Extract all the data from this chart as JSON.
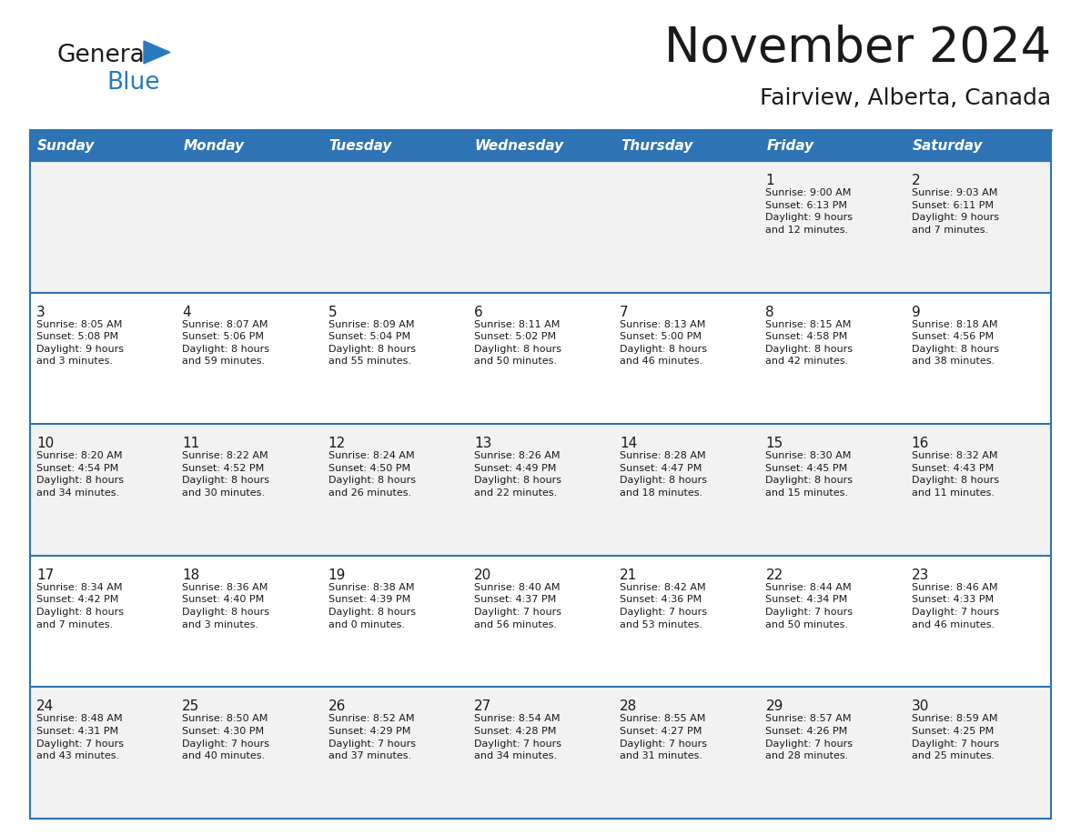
{
  "title": "November 2024",
  "subtitle": "Fairview, Alberta, Canada",
  "header_bg": "#2E74B5",
  "header_text_color": "#FFFFFF",
  "row_bg_light": "#F2F2F2",
  "row_bg_white": "#FFFFFF",
  "day_names": [
    "Sunday",
    "Monday",
    "Tuesday",
    "Wednesday",
    "Thursday",
    "Friday",
    "Saturday"
  ],
  "weeks": [
    [
      {
        "day": "",
        "info": ""
      },
      {
        "day": "",
        "info": ""
      },
      {
        "day": "",
        "info": ""
      },
      {
        "day": "",
        "info": ""
      },
      {
        "day": "",
        "info": ""
      },
      {
        "day": "1",
        "info": "Sunrise: 9:00 AM\nSunset: 6:13 PM\nDaylight: 9 hours\nand 12 minutes."
      },
      {
        "day": "2",
        "info": "Sunrise: 9:03 AM\nSunset: 6:11 PM\nDaylight: 9 hours\nand 7 minutes."
      }
    ],
    [
      {
        "day": "3",
        "info": "Sunrise: 8:05 AM\nSunset: 5:08 PM\nDaylight: 9 hours\nand 3 minutes."
      },
      {
        "day": "4",
        "info": "Sunrise: 8:07 AM\nSunset: 5:06 PM\nDaylight: 8 hours\nand 59 minutes."
      },
      {
        "day": "5",
        "info": "Sunrise: 8:09 AM\nSunset: 5:04 PM\nDaylight: 8 hours\nand 55 minutes."
      },
      {
        "day": "6",
        "info": "Sunrise: 8:11 AM\nSunset: 5:02 PM\nDaylight: 8 hours\nand 50 minutes."
      },
      {
        "day": "7",
        "info": "Sunrise: 8:13 AM\nSunset: 5:00 PM\nDaylight: 8 hours\nand 46 minutes."
      },
      {
        "day": "8",
        "info": "Sunrise: 8:15 AM\nSunset: 4:58 PM\nDaylight: 8 hours\nand 42 minutes."
      },
      {
        "day": "9",
        "info": "Sunrise: 8:18 AM\nSunset: 4:56 PM\nDaylight: 8 hours\nand 38 minutes."
      }
    ],
    [
      {
        "day": "10",
        "info": "Sunrise: 8:20 AM\nSunset: 4:54 PM\nDaylight: 8 hours\nand 34 minutes."
      },
      {
        "day": "11",
        "info": "Sunrise: 8:22 AM\nSunset: 4:52 PM\nDaylight: 8 hours\nand 30 minutes."
      },
      {
        "day": "12",
        "info": "Sunrise: 8:24 AM\nSunset: 4:50 PM\nDaylight: 8 hours\nand 26 minutes."
      },
      {
        "day": "13",
        "info": "Sunrise: 8:26 AM\nSunset: 4:49 PM\nDaylight: 8 hours\nand 22 minutes."
      },
      {
        "day": "14",
        "info": "Sunrise: 8:28 AM\nSunset: 4:47 PM\nDaylight: 8 hours\nand 18 minutes."
      },
      {
        "day": "15",
        "info": "Sunrise: 8:30 AM\nSunset: 4:45 PM\nDaylight: 8 hours\nand 15 minutes."
      },
      {
        "day": "16",
        "info": "Sunrise: 8:32 AM\nSunset: 4:43 PM\nDaylight: 8 hours\nand 11 minutes."
      }
    ],
    [
      {
        "day": "17",
        "info": "Sunrise: 8:34 AM\nSunset: 4:42 PM\nDaylight: 8 hours\nand 7 minutes."
      },
      {
        "day": "18",
        "info": "Sunrise: 8:36 AM\nSunset: 4:40 PM\nDaylight: 8 hours\nand 3 minutes."
      },
      {
        "day": "19",
        "info": "Sunrise: 8:38 AM\nSunset: 4:39 PM\nDaylight: 8 hours\nand 0 minutes."
      },
      {
        "day": "20",
        "info": "Sunrise: 8:40 AM\nSunset: 4:37 PM\nDaylight: 7 hours\nand 56 minutes."
      },
      {
        "day": "21",
        "info": "Sunrise: 8:42 AM\nSunset: 4:36 PM\nDaylight: 7 hours\nand 53 minutes."
      },
      {
        "day": "22",
        "info": "Sunrise: 8:44 AM\nSunset: 4:34 PM\nDaylight: 7 hours\nand 50 minutes."
      },
      {
        "day": "23",
        "info": "Sunrise: 8:46 AM\nSunset: 4:33 PM\nDaylight: 7 hours\nand 46 minutes."
      }
    ],
    [
      {
        "day": "24",
        "info": "Sunrise: 8:48 AM\nSunset: 4:31 PM\nDaylight: 7 hours\nand 43 minutes."
      },
      {
        "day": "25",
        "info": "Sunrise: 8:50 AM\nSunset: 4:30 PM\nDaylight: 7 hours\nand 40 minutes."
      },
      {
        "day": "26",
        "info": "Sunrise: 8:52 AM\nSunset: 4:29 PM\nDaylight: 7 hours\nand 37 minutes."
      },
      {
        "day": "27",
        "info": "Sunrise: 8:54 AM\nSunset: 4:28 PM\nDaylight: 7 hours\nand 34 minutes."
      },
      {
        "day": "28",
        "info": "Sunrise: 8:55 AM\nSunset: 4:27 PM\nDaylight: 7 hours\nand 31 minutes."
      },
      {
        "day": "29",
        "info": "Sunrise: 8:57 AM\nSunset: 4:26 PM\nDaylight: 7 hours\nand 28 minutes."
      },
      {
        "day": "30",
        "info": "Sunrise: 8:59 AM\nSunset: 4:25 PM\nDaylight: 7 hours\nand 25 minutes."
      }
    ]
  ],
  "logo_color_general": "#1a1a1a",
  "logo_color_blue": "#2979BF",
  "logo_triangle_color": "#2979BF",
  "title_fontsize": 38,
  "subtitle_fontsize": 18,
  "header_fontsize": 11,
  "day_num_fontsize": 11,
  "info_fontsize": 8
}
